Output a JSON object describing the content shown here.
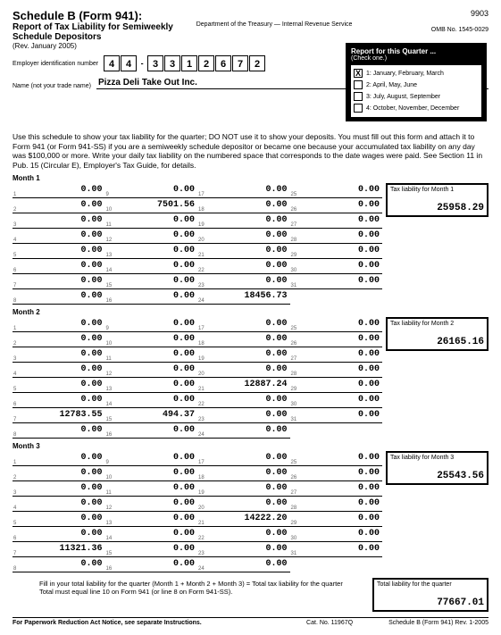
{
  "form_code": "9903",
  "title": "Schedule B (Form 941):",
  "subtitle": "Report of Tax Liability for Semiweekly Schedule Depositors",
  "rev": "(Rev. January 2005)",
  "dept": "Department of the Treasury — Internal Revenue Service",
  "omb": "OMB No. 1545-0029",
  "ein_label": "Employer identification number",
  "ein": [
    "4",
    "4",
    "-",
    "3",
    "3",
    "1",
    "2",
    "6",
    "7",
    "2"
  ],
  "name_label": "Name (not your trade name)",
  "name": "Pizza Deli Take Out  Inc.",
  "qbox": {
    "title": "Report for this Quarter ...",
    "sub": "(Check one.)",
    "opts": [
      {
        "ck": "X",
        "t": "1: January, February, March"
      },
      {
        "ck": "",
        "t": "2: April, May, June"
      },
      {
        "ck": "",
        "t": "3: July, August, September"
      },
      {
        "ck": "",
        "t": "4: October, November, December"
      }
    ]
  },
  "instr": "Use this schedule to show your tax liability for the quarter; DO NOT use it to show your deposits. You must fill out this form and attach it to Form 941 (or Form 941-SS) if you are a semiweekly schedule depositor or became one because your accumulated tax liability on any day was $100,000 or more. Write your daily tax liability on the numbered space that corresponds to the date wages were paid. See Section 11 in Pub. 15 (Circular E), Employer's Tax Guide, for details.",
  "months": [
    {
      "label": "Month 1",
      "tot_label": "Tax liability for Month 1",
      "total": "25958.29",
      "vals": {
        "1": "0.00",
        "2": "0.00",
        "3": "0.00",
        "4": "0.00",
        "5": "0.00",
        "6": "0.00",
        "7": "0.00",
        "8": "0.00",
        "9": "0.00",
        "10": "7501.56",
        "11": "0.00",
        "12": "0.00",
        "13": "0.00",
        "14": "0.00",
        "15": "0.00",
        "16": "0.00",
        "17": "0.00",
        "18": "0.00",
        "19": "0.00",
        "20": "0.00",
        "21": "0.00",
        "22": "0.00",
        "23": "0.00",
        "24": "18456.73",
        "25": "0.00",
        "26": "0.00",
        "27": "0.00",
        "28": "0.00",
        "29": "0.00",
        "30": "0.00",
        "31": "0.00"
      }
    },
    {
      "label": "Month 2",
      "tot_label": "Tax liability for Month 2",
      "total": "26165.16",
      "vals": {
        "1": "0.00",
        "2": "0.00",
        "3": "0.00",
        "4": "0.00",
        "5": "0.00",
        "6": "0.00",
        "7": "12783.55",
        "8": "0.00",
        "9": "0.00",
        "10": "0.00",
        "11": "0.00",
        "12": "0.00",
        "13": "0.00",
        "14": "0.00",
        "15": "494.37",
        "16": "0.00",
        "17": "0.00",
        "18": "0.00",
        "19": "0.00",
        "20": "0.00",
        "21": "12887.24",
        "22": "0.00",
        "23": "0.00",
        "24": "0.00",
        "25": "0.00",
        "26": "0.00",
        "27": "0.00",
        "28": "0.00",
        "29": "0.00",
        "30": "0.00",
        "31": "0.00"
      }
    },
    {
      "label": "Month 3",
      "tot_label": "Tax liability for Month 3",
      "total": "25543.56",
      "vals": {
        "1": "0.00",
        "2": "0.00",
        "3": "0.00",
        "4": "0.00",
        "5": "0.00",
        "6": "0.00",
        "7": "11321.36",
        "8": "0.00",
        "9": "0.00",
        "10": "0.00",
        "11": "0.00",
        "12": "0.00",
        "13": "0.00",
        "14": "0.00",
        "15": "0.00",
        "16": "0.00",
        "17": "0.00",
        "18": "0.00",
        "19": "0.00",
        "20": "0.00",
        "21": "14222.20",
        "22": "0.00",
        "23": "0.00",
        "24": "0.00",
        "25": "0.00",
        "26": "0.00",
        "27": "0.00",
        "28": "0.00",
        "29": "0.00",
        "30": "0.00",
        "31": "0.00"
      }
    }
  ],
  "footer": {
    "line1": "Fill in your total liability for the quarter (Month 1 + Month 2 + Month 3) = Total tax liability for the quarter",
    "line2": "Total must equal line 10 on Form 941 (or line 8 on Form 941-SS).",
    "tot_label": "Total liability for the quarter",
    "total": "77667.01"
  },
  "bottom": {
    "l": "For Paperwork Reduction Act Notice, see separate Instructions.",
    "m": "Cat. No. 11967Q",
    "r": "Schedule B (Form 941) Rev. 1-2005"
  }
}
